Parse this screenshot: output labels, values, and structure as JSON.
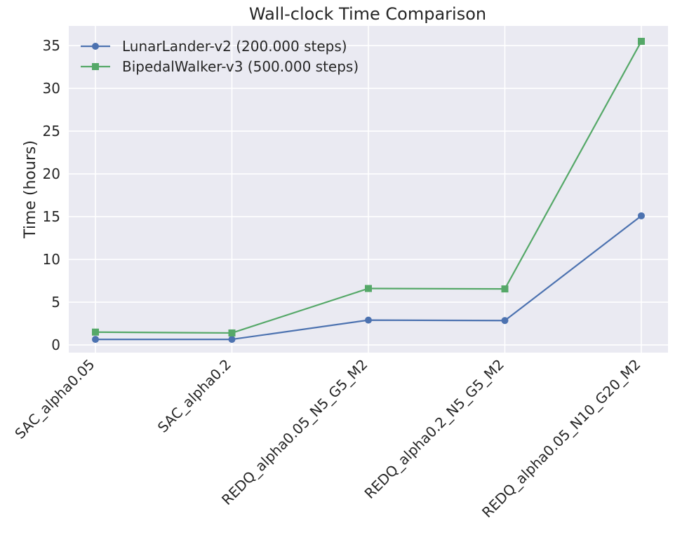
{
  "chart_data": {
    "type": "line",
    "title": "Wall-clock Time Comparison",
    "xlabel": "",
    "ylabel": "Time (hours)",
    "categories": [
      "SAC_alpha0.05",
      "SAC_alpha0.2",
      "REDQ_alpha0.05_N5_G5_M2",
      "REDQ_alpha0.2_N5_G5_M2",
      "REDQ_alpha0.05_N10_G20_M2"
    ],
    "ylim": [
      -0.9,
      37.3
    ],
    "yticks": [
      0,
      5,
      10,
      15,
      20,
      25,
      30,
      35
    ],
    "grid": true,
    "legend_position": "top-left",
    "series": [
      {
        "name": "LunarLander-v2 (200.000 steps)",
        "color": "#4c72b0",
        "marker": "circle",
        "values": [
          0.65,
          0.65,
          2.9,
          2.85,
          15.1
        ]
      },
      {
        "name": "BipedalWalker-v3 (500.000 steps)",
        "color": "#55a868",
        "marker": "square",
        "values": [
          1.5,
          1.4,
          6.6,
          6.55,
          35.5
        ]
      }
    ]
  }
}
